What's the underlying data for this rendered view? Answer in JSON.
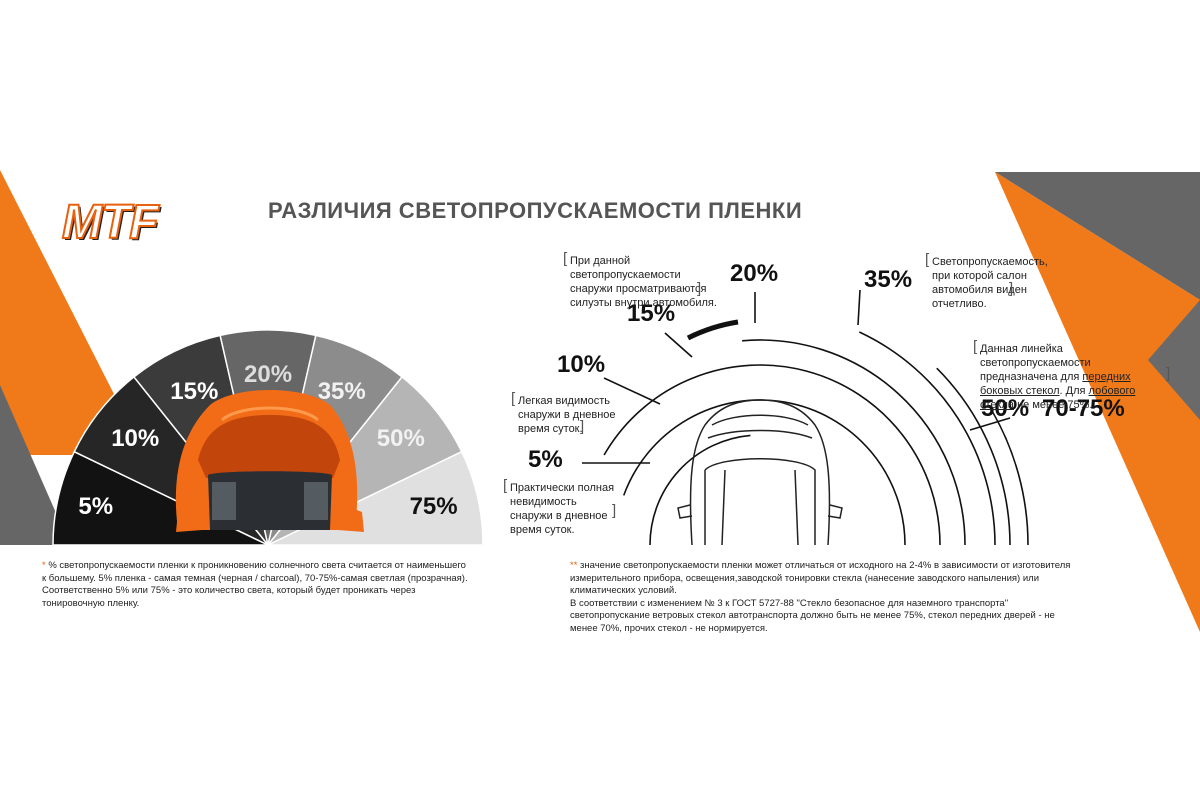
{
  "brand": {
    "logo_text": "MTF"
  },
  "title": "РАЗЛИЧИЯ СВЕТОПРОПУСКАЕМОСТИ ПЛЕНКИ",
  "colors": {
    "orange": "#f07a1a",
    "dark_gray": "#666666",
    "accent_text": "#e8610e"
  },
  "fan": {
    "segments": [
      {
        "label": "5%",
        "fill": "#121212"
      },
      {
        "label": "10%",
        "fill": "#262626"
      },
      {
        "label": "15%",
        "fill": "#3b3b3b"
      },
      {
        "label": "20%",
        "fill": "#666666"
      },
      {
        "label": "35%",
        "fill": "#8c8c8c"
      },
      {
        "label": "50%",
        "fill": "#b5b5b5"
      },
      {
        "label": "75%",
        "fill": "#e0e0e0"
      }
    ]
  },
  "diagram": {
    "labels": [
      "5%",
      "10%",
      "15%",
      "20%",
      "35%",
      "50%",
      "70-75%"
    ],
    "notes": {
      "n20": "При данной светопропускаемости снаружи просматриваются силуэты внутри автомобиля.",
      "n35": "Светопропускаемость, при которой салон автомобиля виден отчетливо.",
      "n10": "Легкая видимость снаружи в дневное время суток.",
      "n5": "Практически полная невидимость снаружи в дневное время суток.",
      "n50_pre": "Данная линейка светопропускаемости предназначена для ",
      "n50_link1": "передних боковых стекол",
      "n50_mid": ". Для ",
      "n50_link2": "лобового стекла",
      "n50_post": " не менее 75%."
    }
  },
  "footnotes": {
    "left_star": "*",
    "left": "% светопропускаемости пленки к проникновению солнечного света считается от наименьшего к большему. 5% пленка - самая темная (черная / charcoal), 70-75%-самая светлая (прозрачная). Соответственно 5% или 75% - это количество света, который будет проникать через тонировочную пленку.",
    "right_star": "**",
    "right_1": "значение светопропускаемости пленки может отличаться от исходного на 2-4% в зависимости от изготовителя измерительного прибора, освещения,заводской тонировки стекла (нанесение заводского напыления) или климатических условий.",
    "right_2": "В соответствии с изменением № 3 к ГОСТ 5727-88 \"Стекло безопасное для наземного транспорта\" светопропускание ветровых стекол автотранспорта должно быть не менее 75%, стекол передних дверей - не менее 70%, прочих стекол - не нормируется."
  }
}
